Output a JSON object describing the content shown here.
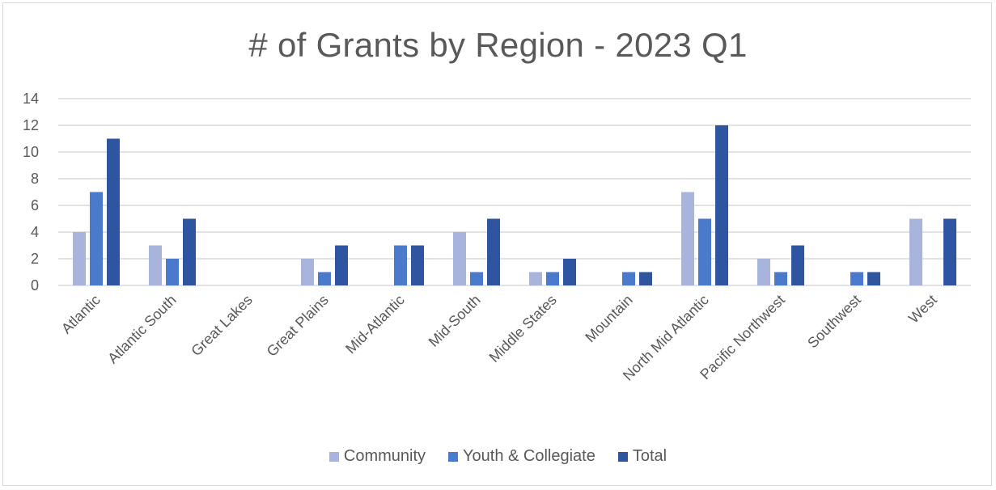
{
  "chart_data": {
    "type": "bar",
    "title": "# of Grants by Region - 2023 Q1",
    "xlabel": "",
    "ylabel": "",
    "ylim": [
      0,
      14
    ],
    "yticks": [
      0,
      2,
      4,
      6,
      8,
      10,
      12,
      14
    ],
    "grid": true,
    "legend_position": "bottom",
    "categories": [
      "Atlantic",
      "Atlantic South",
      "Great Lakes",
      "Great Plains",
      "Mid-Atlantic",
      "Mid-South",
      "Middle States",
      "Mountain",
      "North Mid Atlantic",
      "Pacific Northwest",
      "Southwest",
      "West"
    ],
    "series": [
      {
        "name": "Community",
        "color": "#a9b4dc",
        "values": [
          4,
          3,
          0,
          2,
          0,
          4,
          1,
          0,
          7,
          2,
          0,
          5
        ]
      },
      {
        "name": "Youth & Collegiate",
        "color": "#4a7acb",
        "values": [
          7,
          2,
          0,
          1,
          3,
          1,
          1,
          1,
          5,
          1,
          1,
          0
        ]
      },
      {
        "name": "Total",
        "color": "#2f54a0",
        "values": [
          11,
          5,
          0,
          3,
          3,
          5,
          2,
          1,
          12,
          3,
          1,
          5
        ]
      }
    ]
  }
}
